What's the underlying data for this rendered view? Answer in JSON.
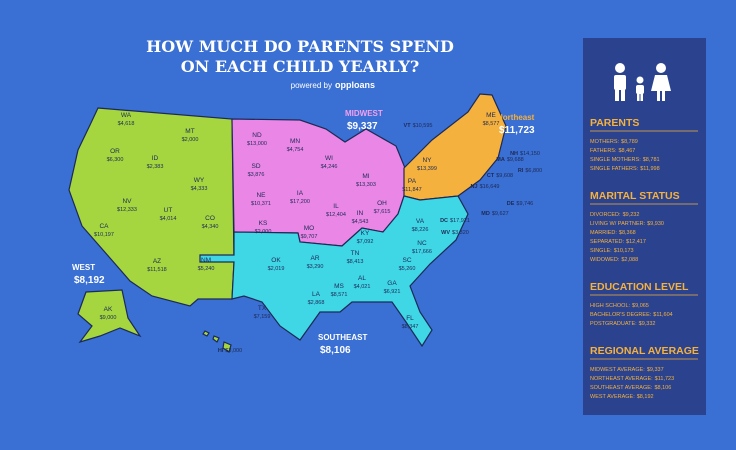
{
  "header": {
    "title_line1": "HOW MUCH DO PARENTS SPEND",
    "title_line2": "ON EACH CHILD YEARLY?",
    "powered_by": "powered by",
    "brand": "opploans"
  },
  "regions": [
    {
      "name": "WEST",
      "average": "$8,192",
      "color": "#a5d63f",
      "states": [
        {
          "abbr": "WA",
          "value": "$4,618"
        },
        {
          "abbr": "MT",
          "value": "$2,000"
        },
        {
          "abbr": "OR",
          "value": "$6,300"
        },
        {
          "abbr": "ID",
          "value": "$2,383"
        },
        {
          "abbr": "WY",
          "value": "$4,333"
        },
        {
          "abbr": "NV",
          "value": "$12,333"
        },
        {
          "abbr": "UT",
          "value": "$4,014"
        },
        {
          "abbr": "CO",
          "value": "$4,340"
        },
        {
          "abbr": "CA",
          "value": "$10,197"
        },
        {
          "abbr": "AZ",
          "value": "$11,518"
        },
        {
          "abbr": "NM",
          "value": "$5,240"
        },
        {
          "abbr": "AK",
          "value": "$9,000"
        },
        {
          "abbr": "HI",
          "value": "$3,000"
        }
      ]
    },
    {
      "name": "MIDWEST",
      "average": "$9,337",
      "color": "#ea86e6",
      "states": [
        {
          "abbr": "ND",
          "value": "$13,000"
        },
        {
          "abbr": "MN",
          "value": "$4,754"
        },
        {
          "abbr": "SD",
          "value": "$3,876"
        },
        {
          "abbr": "WI",
          "value": "$4,246"
        },
        {
          "abbr": "MI",
          "value": "$13,303"
        },
        {
          "abbr": "NE",
          "value": "$10,371"
        },
        {
          "abbr": "IA",
          "value": "$17,200"
        },
        {
          "abbr": "IL",
          "value": "$12,404"
        },
        {
          "abbr": "IN",
          "value": "$4,543"
        },
        {
          "abbr": "OH",
          "value": "$7,615"
        },
        {
          "abbr": "KS",
          "value": "$2,000"
        },
        {
          "abbr": "MO",
          "value": "$9,707"
        }
      ]
    },
    {
      "name": "Northeast",
      "average": "$11,723",
      "color": "#f5b13d",
      "states": [
        {
          "abbr": "ME",
          "value": "$8,577"
        },
        {
          "abbr": "VT",
          "value": "$10,595"
        },
        {
          "abbr": "NH",
          "value": "$14,150"
        },
        {
          "abbr": "MA",
          "value": "$9,688"
        },
        {
          "abbr": "RI",
          "value": "$6,800"
        },
        {
          "abbr": "CT",
          "value": "$9,608"
        },
        {
          "abbr": "NY",
          "value": "$13,399"
        },
        {
          "abbr": "NJ",
          "value": "$16,649"
        },
        {
          "abbr": "PA",
          "value": "$11,847"
        },
        {
          "abbr": "DE",
          "value": "$9,746"
        }
      ]
    },
    {
      "name": "SOUTHEAST",
      "average": "$8,106",
      "color": "#3fd6e6",
      "states": [
        {
          "abbr": "MD",
          "value": "$9,627"
        },
        {
          "abbr": "DC",
          "value": "$17,921"
        },
        {
          "abbr": "WV",
          "value": "$3,320"
        },
        {
          "abbr": "VA",
          "value": "$8,226"
        },
        {
          "abbr": "KY",
          "value": "$7,092"
        },
        {
          "abbr": "NC",
          "value": "$17,666"
        },
        {
          "abbr": "TN",
          "value": "$8,413"
        },
        {
          "abbr": "SC",
          "value": "$5,260"
        },
        {
          "abbr": "OK",
          "value": "$2,019"
        },
        {
          "abbr": "AR",
          "value": "$3,290"
        },
        {
          "abbr": "TX",
          "value": "$7,159"
        },
        {
          "abbr": "LA",
          "value": "$2,868"
        },
        {
          "abbr": "MS",
          "value": "$8,571"
        },
        {
          "abbr": "AL",
          "value": "$4,021"
        },
        {
          "abbr": "GA",
          "value": "$6,921"
        },
        {
          "abbr": "FL",
          "value": "$8,347"
        }
      ]
    }
  ],
  "sidebar": {
    "sections": [
      {
        "title": "PARENTS",
        "items": [
          {
            "label": "MOTHERS:",
            "value": "$8,789"
          },
          {
            "label": "FATHERS:",
            "value": "$8,467"
          },
          {
            "label": "SINGLE MOTHERS:",
            "value": "$8,781"
          },
          {
            "label": "SINGLE FATHERS:",
            "value": "$11,998"
          }
        ]
      },
      {
        "title": "MARITAL STATUS",
        "items": [
          {
            "label": "DIVORCED:",
            "value": "$9,232"
          },
          {
            "label": "LIVING W/ PARTNER:",
            "value": "$9,930"
          },
          {
            "label": "MARRIED:",
            "value": "$8,368"
          },
          {
            "label": "SEPARATED:",
            "value": "$12,417"
          },
          {
            "label": "SINGLE:",
            "value": "$10,173"
          },
          {
            "label": "WIDOWED:",
            "value": "$2,088"
          }
        ]
      },
      {
        "title": "EDUCATION LEVEL",
        "items": [
          {
            "label": "HIGH SCHOOL:",
            "value": "$9,065"
          },
          {
            "label": "BACHELOR'S DEGREE:",
            "value": "$11,604"
          },
          {
            "label": "POSTGRADUATE:",
            "value": "$9,332"
          }
        ]
      },
      {
        "title": "REGIONAL AVERAGE",
        "items": [
          {
            "label": "MIDWEST AVERAGE:",
            "value": "$9,337"
          },
          {
            "label": "NORTHEAST AVERAGE:",
            "value": "$11,723"
          },
          {
            "label": "SOUTHEAST AVERAGE:",
            "value": "$8,106"
          },
          {
            "label": "WEST AVERAGE:",
            "value": "$8,192"
          }
        ]
      }
    ]
  }
}
